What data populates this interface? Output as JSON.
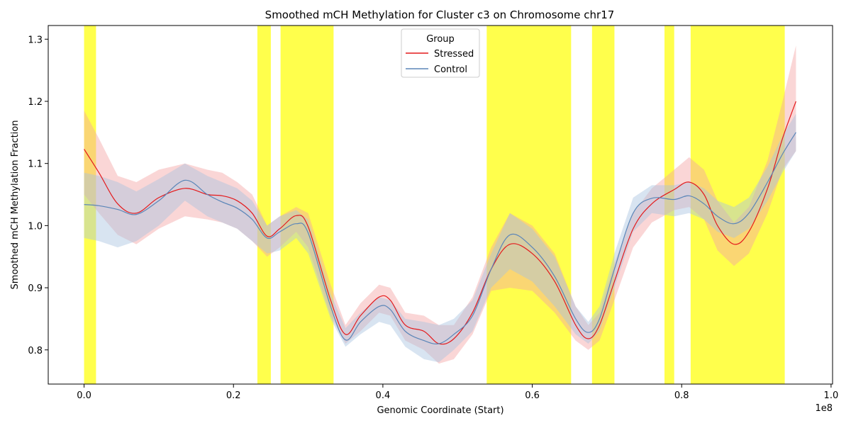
{
  "chart_data": {
    "type": "line",
    "title": "Smoothed mCH Methylation for Cluster c3 on Chromosome chr17",
    "xlabel": "Genomic Coordinate (Start)",
    "ylabel": "Smoothed mCH Methylation Fraction",
    "x_offset_label": "1e8",
    "xlim": [
      -0.048,
      1.002
    ],
    "ylim": [
      0.745,
      1.322
    ],
    "x_ticks": [
      0.0,
      0.2,
      0.4,
      0.6,
      0.8,
      1.0
    ],
    "x_tick_labels": [
      "0.0",
      "0.2",
      "0.4",
      "0.6",
      "0.8",
      "1.0"
    ],
    "y_ticks": [
      0.8,
      0.9,
      1.0,
      1.1,
      1.2,
      1.3
    ],
    "y_tick_labels": [
      "0.8",
      "0.9",
      "1.0",
      "1.1",
      "1.2",
      "1.3"
    ],
    "grid": false,
    "legend": {
      "title": "Group",
      "position": "top-center",
      "entries": [
        "Stressed",
        "Control"
      ]
    },
    "highlight_regions": [
      [
        0.0,
        0.016
      ],
      [
        0.232,
        0.25
      ],
      [
        0.263,
        0.334
      ],
      [
        0.539,
        0.652
      ],
      [
        0.68,
        0.71
      ],
      [
        0.777,
        0.79
      ],
      [
        0.812,
        0.938
      ]
    ],
    "highlight_color": "#ffff00",
    "series": [
      {
        "name": "Stressed",
        "color": "#e41a1c",
        "band_color": "#f4a3a3",
        "x": [
          0.0,
          0.02,
          0.045,
          0.07,
          0.1,
          0.135,
          0.165,
          0.185,
          0.205,
          0.225,
          0.245,
          0.262,
          0.284,
          0.3,
          0.33,
          0.35,
          0.37,
          0.395,
          0.41,
          0.43,
          0.455,
          0.475,
          0.495,
          0.52,
          0.545,
          0.57,
          0.6,
          0.63,
          0.658,
          0.675,
          0.69,
          0.71,
          0.735,
          0.76,
          0.79,
          0.81,
          0.83,
          0.848,
          0.87,
          0.89,
          0.915,
          0.935,
          0.953
        ],
        "y": [
          1.123,
          1.085,
          1.035,
          1.02,
          1.045,
          1.06,
          1.05,
          1.048,
          1.04,
          1.02,
          0.983,
          0.995,
          1.016,
          0.998,
          0.88,
          0.825,
          0.855,
          0.885,
          0.88,
          0.84,
          0.83,
          0.81,
          0.818,
          0.86,
          0.93,
          0.97,
          0.955,
          0.91,
          0.84,
          0.818,
          0.84,
          0.91,
          0.995,
          1.035,
          1.058,
          1.07,
          1.05,
          1.0,
          0.97,
          0.99,
          1.06,
          1.14,
          1.2
        ],
        "lower": [
          1.05,
          1.02,
          0.985,
          0.97,
          0.995,
          1.015,
          1.01,
          1.005,
          0.995,
          0.975,
          0.95,
          0.965,
          0.99,
          0.965,
          0.855,
          0.81,
          0.83,
          0.86,
          0.855,
          0.815,
          0.8,
          0.778,
          0.785,
          0.825,
          0.895,
          0.9,
          0.895,
          0.86,
          0.815,
          0.8,
          0.815,
          0.88,
          0.965,
          1.005,
          1.025,
          1.03,
          1.01,
          0.96,
          0.935,
          0.955,
          1.02,
          1.09,
          1.12
        ],
        "upper": [
          1.185,
          1.14,
          1.08,
          1.07,
          1.09,
          1.1,
          1.09,
          1.085,
          1.07,
          1.05,
          1.0,
          1.015,
          1.03,
          1.02,
          0.905,
          0.84,
          0.875,
          0.905,
          0.9,
          0.86,
          0.855,
          0.84,
          0.84,
          0.885,
          0.965,
          1.02,
          1.0,
          0.955,
          0.87,
          0.84,
          0.86,
          0.94,
          1.02,
          1.06,
          1.09,
          1.11,
          1.09,
          1.04,
          1.005,
          1.03,
          1.105,
          1.2,
          1.29
        ]
      },
      {
        "name": "Control",
        "color": "#5b86b8",
        "band_color": "#a9c4e0",
        "x": [
          0.0,
          0.02,
          0.045,
          0.07,
          0.1,
          0.135,
          0.165,
          0.185,
          0.205,
          0.225,
          0.245,
          0.262,
          0.284,
          0.3,
          0.33,
          0.35,
          0.37,
          0.395,
          0.41,
          0.43,
          0.455,
          0.475,
          0.495,
          0.52,
          0.545,
          0.57,
          0.6,
          0.63,
          0.658,
          0.675,
          0.69,
          0.71,
          0.735,
          0.76,
          0.79,
          0.81,
          0.83,
          0.848,
          0.87,
          0.89,
          0.915,
          0.935,
          0.953
        ],
        "y": [
          1.034,
          1.032,
          1.026,
          1.018,
          1.04,
          1.073,
          1.05,
          1.038,
          1.028,
          1.01,
          0.98,
          0.99,
          1.003,
          0.988,
          0.87,
          0.816,
          0.845,
          0.87,
          0.865,
          0.83,
          0.815,
          0.81,
          0.825,
          0.855,
          0.93,
          0.985,
          0.965,
          0.918,
          0.85,
          0.828,
          0.85,
          0.93,
          1.02,
          1.044,
          1.042,
          1.048,
          1.035,
          1.015,
          1.003,
          1.02,
          1.07,
          1.115,
          1.15
        ],
        "lower": [
          0.98,
          0.975,
          0.965,
          0.975,
          1.0,
          1.04,
          1.015,
          1.005,
          0.995,
          0.975,
          0.955,
          0.96,
          0.98,
          0.955,
          0.85,
          0.805,
          0.825,
          0.845,
          0.84,
          0.805,
          0.785,
          0.78,
          0.8,
          0.83,
          0.9,
          0.93,
          0.91,
          0.87,
          0.825,
          0.81,
          0.83,
          0.9,
          0.99,
          1.02,
          1.015,
          1.02,
          1.01,
          0.99,
          0.98,
          0.995,
          1.04,
          1.085,
          1.12
        ],
        "upper": [
          1.085,
          1.08,
          1.07,
          1.055,
          1.075,
          1.1,
          1.08,
          1.07,
          1.06,
          1.04,
          1.0,
          1.015,
          1.025,
          1.01,
          0.89,
          0.835,
          0.86,
          0.885,
          0.88,
          0.85,
          0.845,
          0.84,
          0.85,
          0.88,
          0.955,
          1.02,
          0.995,
          0.95,
          0.87,
          0.845,
          0.87,
          0.955,
          1.045,
          1.065,
          1.065,
          1.07,
          1.06,
          1.04,
          1.03,
          1.045,
          1.095,
          1.145,
          1.18
        ]
      }
    ]
  }
}
